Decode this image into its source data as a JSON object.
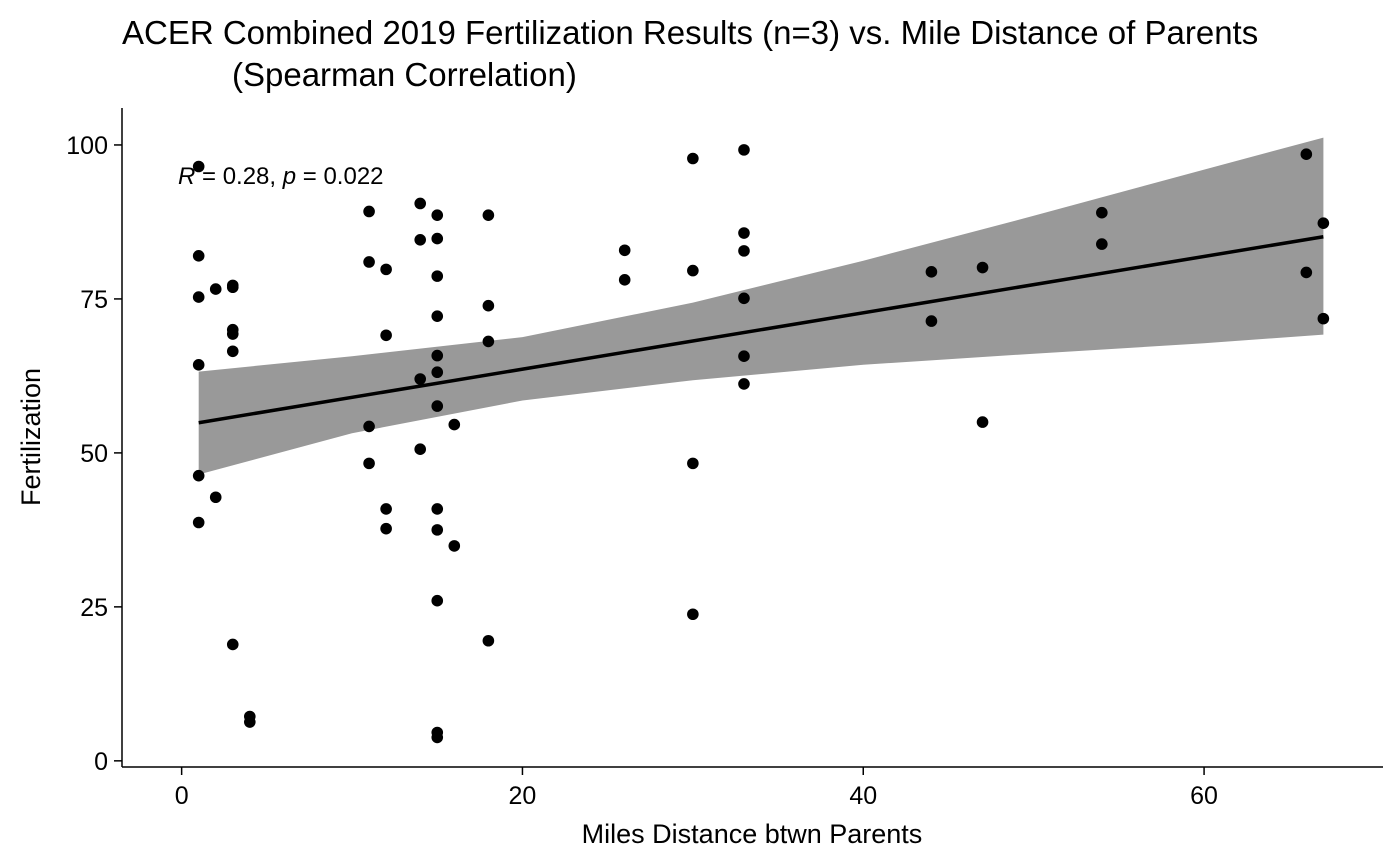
{
  "chart_data": {
    "type": "scatter",
    "title": "ACER Combined 2019 Fertilization Results (n=3) vs. Mile Distance of Parents",
    "subtitle": "(Spearman Correlation)",
    "xlabel": "Miles Distance btwn Parents",
    "ylabel": "Fertilization",
    "xlim": [
      -3.5,
      70.5
    ],
    "ylim": [
      -1,
      106
    ],
    "xticks": [
      0,
      20,
      40,
      60
    ],
    "yticks": [
      0,
      25,
      50,
      75,
      100
    ],
    "xtick_labels": [
      "0",
      "20",
      "40",
      "60"
    ],
    "ytick_labels": [
      "0",
      "25",
      "50",
      "75",
      "100"
    ],
    "annotation": {
      "r_symbol": "R",
      "r_text": " = 0.28, ",
      "p_symbol": "p",
      "p_text": " = 0.022"
    },
    "grid": false,
    "legend": "none",
    "point_color": "#000000",
    "band_color": "#999999",
    "line_color": "#000000",
    "points": [
      {
        "x": 1,
        "y": 96.5
      },
      {
        "x": 1,
        "y": 82
      },
      {
        "x": 1,
        "y": 75.3
      },
      {
        "x": 1,
        "y": 64.3
      },
      {
        "x": 1,
        "y": 46.3
      },
      {
        "x": 1,
        "y": 38.7
      },
      {
        "x": 2,
        "y": 76.6
      },
      {
        "x": 2,
        "y": 42.8
      },
      {
        "x": 3,
        "y": 77.2
      },
      {
        "x": 3,
        "y": 76.9
      },
      {
        "x": 3,
        "y": 70
      },
      {
        "x": 3,
        "y": 69.3
      },
      {
        "x": 3,
        "y": 66.5
      },
      {
        "x": 3,
        "y": 18.9
      },
      {
        "x": 4,
        "y": 7.2
      },
      {
        "x": 4,
        "y": 6.3
      },
      {
        "x": 11,
        "y": 89.2
      },
      {
        "x": 11,
        "y": 81
      },
      {
        "x": 11,
        "y": 54.3
      },
      {
        "x": 11,
        "y": 48.3
      },
      {
        "x": 12,
        "y": 79.8
      },
      {
        "x": 12,
        "y": 69.1
      },
      {
        "x": 12,
        "y": 40.9
      },
      {
        "x": 12,
        "y": 37.7
      },
      {
        "x": 14,
        "y": 90.5
      },
      {
        "x": 14,
        "y": 84.6
      },
      {
        "x": 14,
        "y": 62.0
      },
      {
        "x": 14,
        "y": 50.6
      },
      {
        "x": 15,
        "y": 88.6
      },
      {
        "x": 15,
        "y": 84.8
      },
      {
        "x": 15,
        "y": 78.7
      },
      {
        "x": 15,
        "y": 72.2
      },
      {
        "x": 15,
        "y": 65.8
      },
      {
        "x": 15,
        "y": 63.1
      },
      {
        "x": 15,
        "y": 57.6
      },
      {
        "x": 15,
        "y": 40.9
      },
      {
        "x": 15,
        "y": 37.5
      },
      {
        "x": 15,
        "y": 26
      },
      {
        "x": 15,
        "y": 4.6
      },
      {
        "x": 15,
        "y": 3.8
      },
      {
        "x": 16,
        "y": 54.6
      },
      {
        "x": 16,
        "y": 34.9
      },
      {
        "x": 18,
        "y": 88.6
      },
      {
        "x": 18,
        "y": 73.9
      },
      {
        "x": 18,
        "y": 68.1
      },
      {
        "x": 18,
        "y": 19.5
      },
      {
        "x": 26,
        "y": 82.9
      },
      {
        "x": 26,
        "y": 78.1
      },
      {
        "x": 30,
        "y": 97.8
      },
      {
        "x": 30,
        "y": 79.6
      },
      {
        "x": 30,
        "y": 48.3
      },
      {
        "x": 30,
        "y": 23.8
      },
      {
        "x": 33,
        "y": 99.2
      },
      {
        "x": 33,
        "y": 85.7
      },
      {
        "x": 33,
        "y": 82.8
      },
      {
        "x": 33,
        "y": 75.1
      },
      {
        "x": 33,
        "y": 65.7
      },
      {
        "x": 33,
        "y": 61.2
      },
      {
        "x": 44,
        "y": 79.4
      },
      {
        "x": 44,
        "y": 71.4
      },
      {
        "x": 47,
        "y": 80.1
      },
      {
        "x": 47,
        "y": 55
      },
      {
        "x": 54,
        "y": 89
      },
      {
        "x": 54,
        "y": 83.9
      },
      {
        "x": 66,
        "y": 98.5
      },
      {
        "x": 66,
        "y": 79.3
      },
      {
        "x": 67,
        "y": 87.3
      },
      {
        "x": 67,
        "y": 71.8
      }
    ],
    "fit_line": [
      {
        "x": 1,
        "y": 54.9
      },
      {
        "x": 67,
        "y": 85.1
      }
    ],
    "confidence_band": {
      "x": [
        1,
        10,
        20,
        30,
        40,
        50,
        60,
        67
      ],
      "upper": [
        63.2,
        65.7,
        68.8,
        74.4,
        81.2,
        88.5,
        96.0,
        101.2
      ],
      "lower": [
        46.5,
        53.2,
        58.5,
        61.8,
        64.3,
        66.1,
        67.8,
        69.2
      ]
    }
  }
}
